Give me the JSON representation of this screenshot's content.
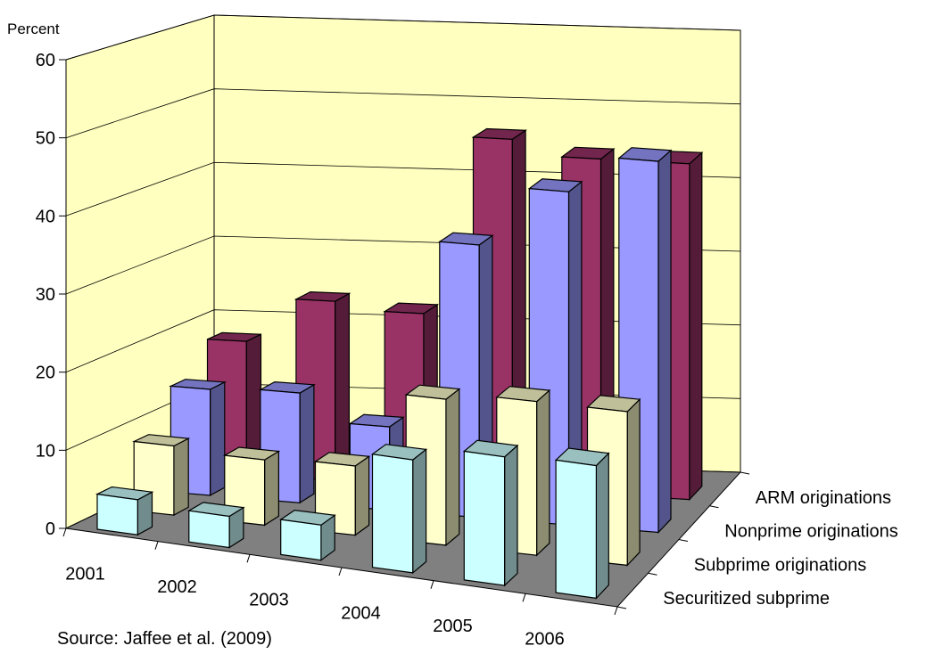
{
  "chart_data": {
    "type": "bar",
    "subtype": "3d-clustered-depth",
    "ylabel": "Percent",
    "ylim": [
      0,
      60
    ],
    "yticks": [
      0,
      10,
      20,
      30,
      40,
      50,
      60
    ],
    "categories": [
      "2001",
      "2002",
      "2003",
      "2004",
      "2005",
      "2006"
    ],
    "series": [
      {
        "name": "Securitized subprime",
        "values": [
          4.5,
          4.0,
          4.5,
          14.5,
          16.5,
          17.0
        ]
      },
      {
        "name": "Subprime originations",
        "values": [
          9.0,
          8.5,
          9.0,
          19.0,
          20.0,
          20.0
        ]
      },
      {
        "name": "Nonprime originations",
        "values": [
          14.0,
          14.5,
          11.0,
          36.0,
          44.0,
          49.0
        ]
      },
      {
        "name": "ARM  originations",
        "values": [
          18.0,
          24.0,
          23.0,
          47.0,
          45.0,
          45.0
        ]
      }
    ],
    "grid": true,
    "legend": "none"
  },
  "source_note": "Source: Jaffee et al. (2009)",
  "colors": {
    "wall": "#ffffc0",
    "floor": "#808080",
    "series": [
      "#ccffff",
      "#ffffcc",
      "#9999ff",
      "#993366"
    ]
  }
}
